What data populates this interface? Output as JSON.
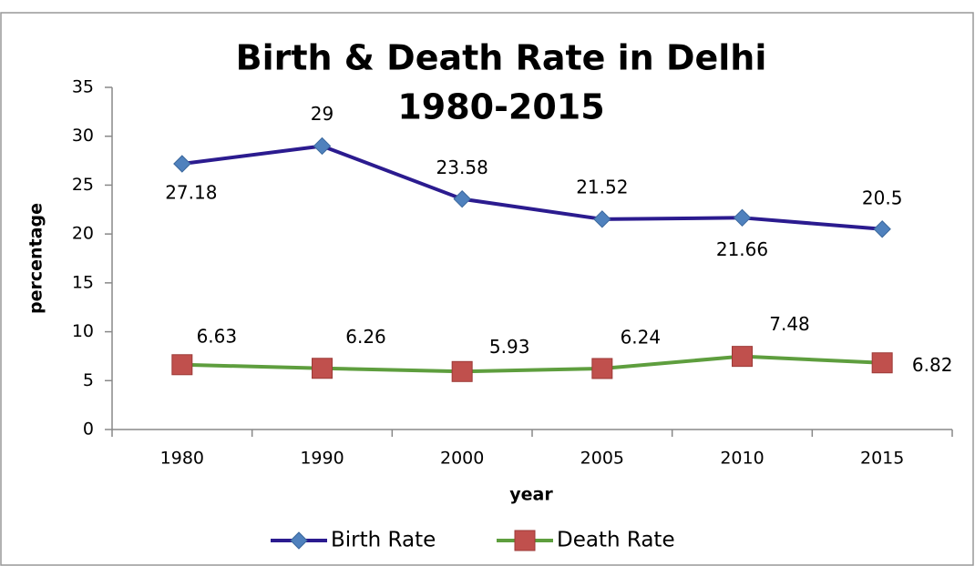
{
  "chart_data": {
    "type": "line",
    "title": "Birth & Death Rate in Delhi",
    "subtitle": "1980-2015",
    "x_label": "year",
    "y_label": "percentage",
    "categories": [
      "1980",
      "1990",
      "2000",
      "2005",
      "2010",
      "2015"
    ],
    "series": [
      {
        "name": "Birth Rate",
        "color": "#4f81bd",
        "line_color": "#2b1b8f",
        "marker": "diamond",
        "values": [
          27.18,
          29,
          23.58,
          21.52,
          21.66,
          20.5
        ]
      },
      {
        "name": "Death Rate",
        "color": "#c0504d",
        "line_color": "#5e9e3e",
        "marker": "square",
        "values": [
          6.63,
          6.26,
          5.93,
          6.24,
          7.48,
          6.82
        ]
      }
    ],
    "ylim": [
      0,
      35
    ],
    "yticks": [
      0,
      5,
      10,
      15,
      20,
      25,
      30,
      35
    ],
    "grid": false,
    "legend": "bottom"
  }
}
